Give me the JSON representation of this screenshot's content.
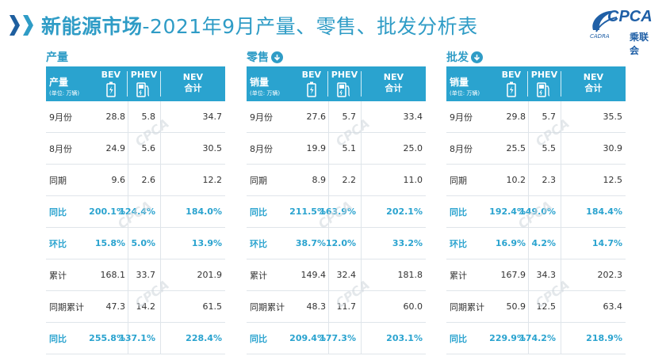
{
  "title": {
    "bold_part": "新能源市场",
    "rest": "-2021年9月产量、零售、批发分析表"
  },
  "logo": {
    "brand": "CPCA",
    "cn": "乘联会",
    "small": "CADRA"
  },
  "header": {
    "unit": "(单位: 万辆)",
    "bev": "BEV",
    "phev": "PHEV",
    "nev_line1": "NEV",
    "nev_line2": "合计"
  },
  "panels": [
    {
      "label": "产量",
      "first_header": "产量",
      "rows": [
        {
          "label": "9月份",
          "bev": "28.8",
          "phev": "5.8",
          "nev": "34.7"
        },
        {
          "label": "8月份",
          "bev": "24.9",
          "phev": "5.6",
          "nev": "30.5"
        },
        {
          "label": "同期",
          "bev": "9.6",
          "phev": "2.6",
          "nev": "12.2"
        },
        {
          "label": "同比",
          "bev": "200.1%",
          "phev": "124.4%",
          "nev": "184.0%"
        },
        {
          "label": "环比",
          "bev": "15.8%",
          "phev": "5.0%",
          "nev": "13.9%"
        },
        {
          "label": "累计",
          "bev": "168.1",
          "phev": "33.7",
          "nev": "201.9"
        },
        {
          "label": "同期累计",
          "bev": "47.3",
          "phev": "14.2",
          "nev": "61.5"
        },
        {
          "label": "同比",
          "bev": "255.8%",
          "phev": "137.1%",
          "nev": "228.4%"
        }
      ]
    },
    {
      "label": "零售",
      "first_header": "销量",
      "rows": [
        {
          "label": "9月份",
          "bev": "27.6",
          "phev": "5.7",
          "nev": "33.4"
        },
        {
          "label": "8月份",
          "bev": "19.9",
          "phev": "5.1",
          "nev": "25.0"
        },
        {
          "label": "同期",
          "bev": "8.9",
          "phev": "2.2",
          "nev": "11.0"
        },
        {
          "label": "同比",
          "bev": "211.5%",
          "phev": "163.9%",
          "nev": "202.1%"
        },
        {
          "label": "环比",
          "bev": "38.7%",
          "phev": "12.0%",
          "nev": "33.2%"
        },
        {
          "label": "累计",
          "bev": "149.4",
          "phev": "32.4",
          "nev": "181.8"
        },
        {
          "label": "同期累计",
          "bev": "48.3",
          "phev": "11.7",
          "nev": "60.0"
        },
        {
          "label": "同比",
          "bev": "209.4%",
          "phev": "177.3%",
          "nev": "203.1%"
        }
      ]
    },
    {
      "label": "批发",
      "first_header": "销量",
      "rows": [
        {
          "label": "9月份",
          "bev": "29.8",
          "phev": "5.7",
          "nev": "35.5"
        },
        {
          "label": "8月份",
          "bev": "25.5",
          "phev": "5.5",
          "nev": "30.9"
        },
        {
          "label": "同期",
          "bev": "10.2",
          "phev": "2.3",
          "nev": "12.5"
        },
        {
          "label": "同比",
          "bev": "192.4%",
          "phev": "149.0%",
          "nev": "184.4%"
        },
        {
          "label": "环比",
          "bev": "16.9%",
          "phev": "4.2%",
          "nev": "14.7%"
        },
        {
          "label": "累计",
          "bev": "167.9",
          "phev": "34.3",
          "nev": "202.3"
        },
        {
          "label": "同期累计",
          "bev": "50.9",
          "phev": "12.5",
          "nev": "63.4"
        },
        {
          "label": "同比",
          "bev": "229.9%",
          "phev": "174.2%",
          "nev": "218.9%"
        }
      ]
    }
  ],
  "colors": {
    "accent": "#2aa3cf",
    "title": "#2f9cc6",
    "brand": "#1f5fa6"
  }
}
